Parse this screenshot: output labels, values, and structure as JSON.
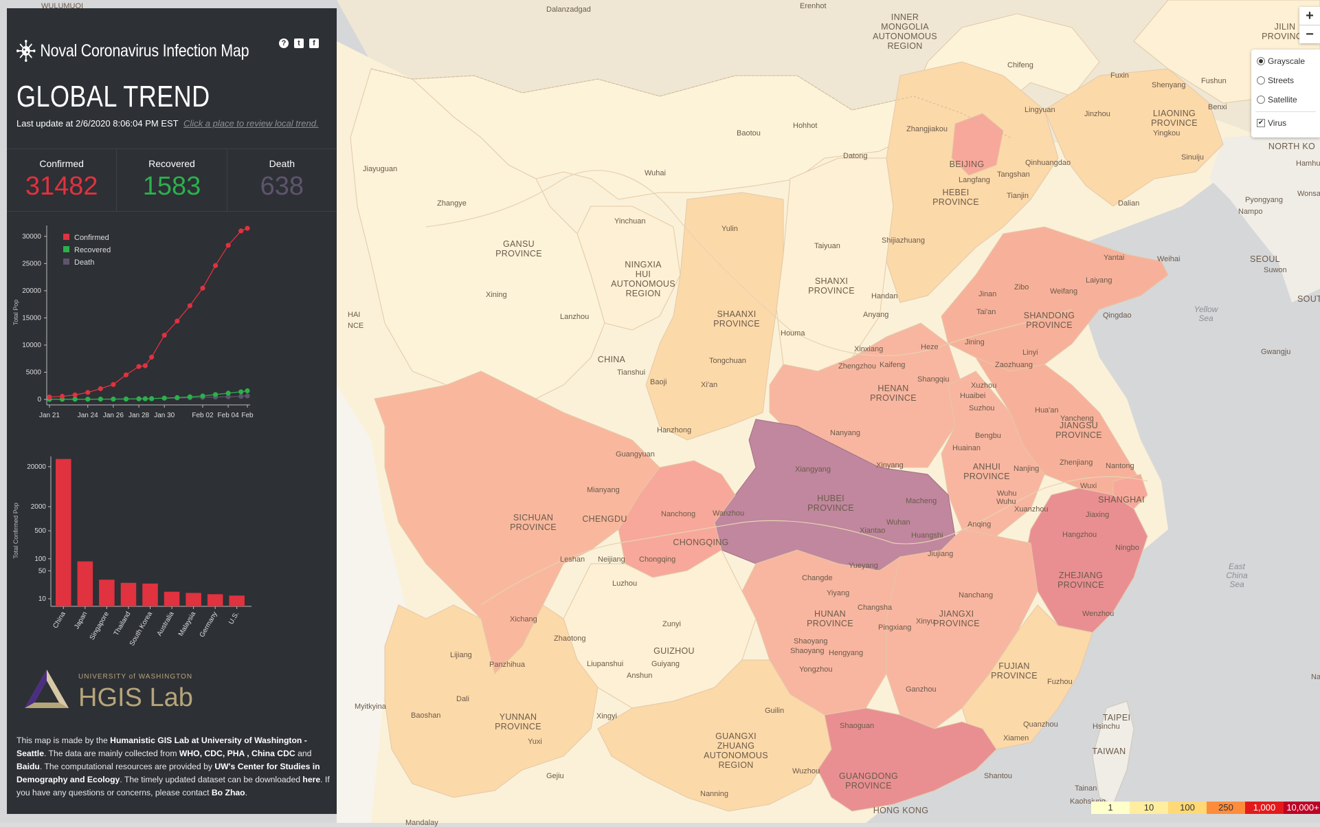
{
  "app": {
    "title": "Noval Coronavirus Infection Map",
    "heading": "GLOBAL TREND",
    "update_text": "Last update at 2/6/2020 8:06:04 PM EST",
    "update_link": "Click a place to review local trend.",
    "icons": [
      "help-icon",
      "twitter-icon",
      "facebook-icon"
    ]
  },
  "stats": {
    "confirmed_label": "Confirmed",
    "confirmed_value": "31482",
    "recovered_label": "Recovered",
    "recovered_value": "1583",
    "death_label": "Death",
    "death_value": "638"
  },
  "colors": {
    "confirmed": "#e0323f",
    "recovered": "#2bb14b",
    "death": "#5e546d",
    "panel": "#2d3035"
  },
  "chart_data": [
    {
      "type": "line",
      "ylabel": "Total Pop",
      "xlabel": "",
      "x_ticks": [
        "Jan 21",
        "Jan 24",
        "Jan 26",
        "Jan 28",
        "Jan 30",
        "Feb 02",
        "Feb 04",
        "Feb"
      ],
      "y_ticks": [
        0,
        5000,
        10000,
        15000,
        20000,
        25000,
        30000
      ],
      "ylim": [
        0,
        32000
      ],
      "legend": "top-left",
      "x_days": [
        0,
        1,
        2,
        3,
        4,
        5,
        6,
        7,
        7.5,
        8,
        9,
        10,
        11,
        12,
        13,
        14,
        15,
        15.5
      ],
      "series": [
        {
          "name": "Confirmed",
          "color": "#e0323f",
          "values": [
            440,
            571,
            830,
            1287,
            1975,
            2744,
            4515,
            6057,
            6200,
            7783,
            11821,
            14411,
            17238,
            20471,
            24630,
            28353,
            31000,
            31482
          ]
        },
        {
          "name": "Recovered",
          "color": "#2bb14b",
          "values": [
            28,
            28,
            34,
            38,
            49,
            51,
            60,
            103,
            120,
            124,
            243,
            328,
            475,
            632,
            892,
            1153,
            1400,
            1583
          ]
        },
        {
          "name": "Death",
          "color": "#5e546d",
          "values": [
            9,
            17,
            25,
            41,
            56,
            80,
            106,
            132,
            150,
            170,
            213,
            259,
            304,
            362,
            426,
            492,
            565,
            638
          ]
        }
      ]
    },
    {
      "type": "bar",
      "ylabel": "Total Confirmed Pop",
      "y_ticks": [
        10,
        50,
        100,
        500,
        2000,
        20000
      ],
      "y_scale": "log",
      "categories": [
        "China",
        "Japan",
        "Singapore",
        "Thailand",
        "South Korea",
        "Australia",
        "Malaysia",
        "Germany",
        "U.S."
      ],
      "values": [
        31161,
        86,
        30,
        25,
        24,
        15,
        14,
        13,
        12
      ]
    }
  ],
  "logo": {
    "university": "UNIVERSITY of WASHINGTON",
    "lab": "HGIS Lab"
  },
  "footer": {
    "t1": "This map is made by the ",
    "b1": "Humanistic GIS Lab at University of Washington - Seattle",
    "t2": ". The data are mainly collected from ",
    "b2": "WHO, CDC, PHA , China CDC",
    "t3": " and ",
    "b3": "Baidu",
    "t4": ". The computational resources are provided by ",
    "b4": "UW's Center for Studies in Demography and Ecology",
    "t5": ". The timely updated dataset can be downloaded ",
    "b5": "here",
    "t6": ". If you have any questions or concerns, please contact ",
    "b6": "Bo Zhao",
    "t7": "."
  },
  "map_controls": {
    "zoom_in": "+",
    "zoom_out": "−"
  },
  "layers": {
    "grayscale": "Grayscale",
    "streets": "Streets",
    "satellite": "Satellite",
    "virus": "Virus",
    "selected": "Grayscale",
    "virus_checked": true
  },
  "legend": [
    {
      "label": "1",
      "color": "#ffffcc"
    },
    {
      "label": "10",
      "color": "#ffeda0"
    },
    {
      "label": "100",
      "color": "#fed976"
    },
    {
      "label": "250",
      "color": "#fd8d3c"
    },
    {
      "label": "1,000",
      "color": "#e31a1c"
    },
    {
      "label": "10,000+",
      "color": "#bd0026"
    }
  ],
  "map_labels": {
    "provinces": [
      {
        "key": "gansu",
        "text": "GANSU\nPROVINCE"
      },
      {
        "key": "ningxia",
        "text": "NINGXIA\nHUI\nAUTONOMOUS\nREGION"
      },
      {
        "key": "shanxi",
        "text": "SHANXI\nPROVINCE"
      },
      {
        "key": "shaanxi",
        "text": "SHAANXI\nPROVINCE"
      },
      {
        "key": "hebei",
        "text": "HEBEI\nPROVINCE"
      },
      {
        "key": "shandong",
        "text": "SHANDONG\nPROVINCE"
      },
      {
        "key": "henan",
        "text": "HENAN\nPROVINCE"
      },
      {
        "key": "jiangsu",
        "text": "JIANGSU\nPROVINCE"
      },
      {
        "key": "anhui",
        "text": "ANHUI\nPROVINCE"
      },
      {
        "key": "hubei",
        "text": "HUBEI\nPROVINCE"
      },
      {
        "key": "sichuan",
        "text": "SICHUAN\nPROVINCE"
      },
      {
        "key": "zhejiang",
        "text": "ZHEJIANG\nPROVINCE"
      },
      {
        "key": "hunan",
        "text": "HUNAN\nPROVINCE"
      },
      {
        "key": "jiangxi",
        "text": "JIANGXI\nPROVINCE"
      },
      {
        "key": "fujian",
        "text": "FUJIAN\nPROVINCE"
      },
      {
        "key": "guizhou",
        "text": "GUIZHOU"
      },
      {
        "key": "yunnan",
        "text": "YUNNAN\nPROVINCE"
      },
      {
        "key": "guangxi",
        "text": "GUANGXI\nZHUANG\nAUTONOMOUS\nREGION"
      },
      {
        "key": "guangdong",
        "text": "GUANGDONG\nPROVINCE"
      },
      {
        "key": "liaoning",
        "text": "LIAONING\nPROVINCE"
      },
      {
        "key": "innermongolia",
        "text": "INNER\nMONGOLIA\nAUTONOMOUS\nREGION"
      },
      {
        "key": "jilin",
        "text": "JILIN\nPROVINCE"
      },
      {
        "key": "taiwan",
        "text": "TAIWAN"
      },
      {
        "key": "china",
        "text": "CHINA"
      },
      {
        "key": "chongqing",
        "text": "CHONGQING"
      },
      {
        "key": "shanghai",
        "text": "SHANGHAI"
      },
      {
        "key": "beijing",
        "text": "BEIJING"
      },
      {
        "key": "hongkong",
        "text": "HONG KONG"
      },
      {
        "key": "chengdu",
        "text": "CHENGDU"
      },
      {
        "key": "northkorea",
        "text": "NORTH KO"
      },
      {
        "key": "south",
        "text": "SOUT"
      },
      {
        "key": "seoul",
        "text": "SEOUL"
      },
      {
        "key": "taipei",
        "text": "TAIPEI"
      }
    ],
    "seas": [
      {
        "key": "yellowsea",
        "text": "Yellow\nSea"
      },
      {
        "key": "eastchinasea",
        "text": "East\nChina\nSea"
      }
    ],
    "cities": [
      {
        "key": "dalanzadgad",
        "text": "Dalanzadgad"
      },
      {
        "key": "erenhot",
        "text": "Erenhot"
      },
      {
        "key": "jiayuguan",
        "text": "Jiayuguan"
      },
      {
        "key": "zhangye",
        "text": "Zhangye"
      },
      {
        "key": "wuhai",
        "text": "Wuhai"
      },
      {
        "key": "baotou",
        "text": "Baotou"
      },
      {
        "key": "hohhot",
        "text": "Hohhot"
      },
      {
        "key": "zhangjiakou",
        "text": "Zhangjiakou"
      },
      {
        "key": "datong",
        "text": "Datong"
      },
      {
        "key": "chifeng",
        "text": "Chifeng"
      },
      {
        "key": "fuxin",
        "text": "Fuxin"
      },
      {
        "key": "shenyang",
        "text": "Shenyang"
      },
      {
        "key": "fushun",
        "text": "Fushun"
      },
      {
        "key": "benxi",
        "text": "Benxi"
      },
      {
        "key": "jinzhou",
        "text": "Jinzhou"
      },
      {
        "key": "lingyuan",
        "text": "Lingyuan"
      },
      {
        "key": "qinhuangdao",
        "text": "Qinhuangdao"
      },
      {
        "key": "tangshan",
        "text": "Tangshan"
      },
      {
        "key": "tianjin",
        "text": "Tianjin"
      },
      {
        "key": "langfang",
        "text": "Langfang"
      },
      {
        "key": "yingkou",
        "text": "Yingkou"
      },
      {
        "key": "dalian",
        "text": "Dalian"
      },
      {
        "key": "sinuiju",
        "text": "Sinuiju"
      },
      {
        "key": "hamhung",
        "text": "Hamhung"
      },
      {
        "key": "pyongyang",
        "text": "Pyongyang"
      },
      {
        "key": "nampo",
        "text": "Nampo"
      },
      {
        "key": "wonsan",
        "text": "Wonsan"
      },
      {
        "key": "suwon",
        "text": "Suwon"
      },
      {
        "key": "gwangju",
        "text": "Gwangju"
      },
      {
        "key": "yinchuan",
        "text": "Yinchuan"
      },
      {
        "key": "yulin",
        "text": "Yulin"
      },
      {
        "key": "taiyuan",
        "text": "Taiyuan"
      },
      {
        "key": "shijiazhuang",
        "text": "Shijiazhuang"
      },
      {
        "key": "handan",
        "text": "Handan"
      },
      {
        "key": "anyang",
        "text": "Anyang"
      },
      {
        "key": "xining",
        "text": "Xining"
      },
      {
        "key": "lanzhou",
        "text": "Lanzhou"
      },
      {
        "key": "tianshui",
        "text": "Tianshui"
      },
      {
        "key": "baoji",
        "text": "Baoji"
      },
      {
        "key": "xian",
        "text": "Xi'an"
      },
      {
        "key": "tongchuan",
        "text": "Tongchuan"
      },
      {
        "key": "houma",
        "text": "Houma"
      },
      {
        "key": "yantai",
        "text": "Yantai"
      },
      {
        "key": "weihai",
        "text": "Weihai"
      },
      {
        "key": "laiyang",
        "text": "Laiyang"
      },
      {
        "key": "qingdao",
        "text": "Qingdao"
      },
      {
        "key": "jinan",
        "text": "Jinan"
      },
      {
        "key": "zibo",
        "text": "Zibo"
      },
      {
        "key": "weifang",
        "text": "Weifang"
      },
      {
        "key": "taian",
        "text": "Tai'an"
      },
      {
        "key": "jining",
        "text": "Jining"
      },
      {
        "key": "linyi",
        "text": "Linyi"
      },
      {
        "key": "heze",
        "text": "Heze"
      },
      {
        "key": "xinxiang",
        "text": "Xinxiang"
      },
      {
        "key": "zhengzhou",
        "text": "Zhengzhou"
      },
      {
        "key": "kaifeng",
        "text": "Kaifeng"
      },
      {
        "key": "shangqiu",
        "text": "Shangqiu"
      },
      {
        "key": "zaozhuang",
        "text": "Zaozhuang"
      },
      {
        "key": "xuzhou",
        "text": "Xuzhou"
      },
      {
        "key": "huaibei",
        "text": "Huaibei"
      },
      {
        "key": "suzhou_a",
        "text": "Suzhou"
      },
      {
        "key": "huaian",
        "text": "Hua'an"
      },
      {
        "key": "yancheng",
        "text": "Yancheng"
      },
      {
        "key": "bengbu",
        "text": "Bengbu"
      },
      {
        "key": "huainan",
        "text": "Huainan"
      },
      {
        "key": "nanjing",
        "text": "Nanjing"
      },
      {
        "key": "zhenjiang",
        "text": "Zhenjiang"
      },
      {
        "key": "nantong",
        "text": "Nantong"
      },
      {
        "key": "wuxi",
        "text": "Wuxi"
      },
      {
        "key": "wuhu",
        "text": "Wuhu"
      },
      {
        "key": "wuhu2",
        "text": "Wuhu"
      },
      {
        "key": "xuanzhou",
        "text": "Xuanzhou"
      },
      {
        "key": "anqing",
        "text": "Anqing"
      },
      {
        "key": "jiaxing",
        "text": "Jiaxing"
      },
      {
        "key": "hangzhou",
        "text": "Hangzhou"
      },
      {
        "key": "ningbo",
        "text": "Ningbo"
      },
      {
        "key": "wenzhou",
        "text": "Wenzhou"
      },
      {
        "key": "hanzhong",
        "text": "Hanzhong"
      },
      {
        "key": "nanyang",
        "text": "Nanyang"
      },
      {
        "key": "xiangyang",
        "text": "Xiangyang"
      },
      {
        "key": "xinyang",
        "text": "Xinyang"
      },
      {
        "key": "macheng",
        "text": "Macheng"
      },
      {
        "key": "wuhan",
        "text": "Wuhan"
      },
      {
        "key": "xiantao",
        "text": "Xiantao"
      },
      {
        "key": "huangshi",
        "text": "Huangshi"
      },
      {
        "key": "jiujiang",
        "text": "Jiujiang"
      },
      {
        "key": "guangyuan",
        "text": "Guangyuan"
      },
      {
        "key": "mianyang",
        "text": "Mianyang"
      },
      {
        "key": "nanchong",
        "text": "Nanchong"
      },
      {
        "key": "wanzhou",
        "text": "Wanzhou"
      },
      {
        "key": "leshan",
        "text": "Leshan"
      },
      {
        "key": "neijiang",
        "text": "Neijiang"
      },
      {
        "key": "chongqing_c",
        "text": "Chongqing"
      },
      {
        "key": "luzhou",
        "text": "Luzhou"
      },
      {
        "key": "xichang",
        "text": "Xichang"
      },
      {
        "key": "yueyang",
        "text": "Yueyang"
      },
      {
        "key": "changde",
        "text": "Changde"
      },
      {
        "key": "yiyang",
        "text": "Yiyang"
      },
      {
        "key": "changsha",
        "text": "Changsha"
      },
      {
        "key": "nanchang",
        "text": "Nanchang"
      },
      {
        "key": "xinyu",
        "text": "Xinyu"
      },
      {
        "key": "pingxiang",
        "text": "Pingxiang"
      },
      {
        "key": "shaoyang",
        "text": "Shaoyang"
      },
      {
        "key": "shaoyang2",
        "text": "Shaoyang"
      },
      {
        "key": "hengyang",
        "text": "Hengyang"
      },
      {
        "key": "yongzhou",
        "text": "Yongzhou"
      },
      {
        "key": "ganzhou",
        "text": "Ganzhou"
      },
      {
        "key": "zunyi",
        "text": "Zunyi"
      },
      {
        "key": "zhaotong",
        "text": "Zhaotong"
      },
      {
        "key": "lupanshui",
        "text": "Liupanshui"
      },
      {
        "key": "guiyang",
        "text": "Guiyang"
      },
      {
        "key": "anshun",
        "text": "Anshun"
      },
      {
        "key": "lijiang",
        "text": "Lijiang"
      },
      {
        "key": "panzhihua",
        "text": "Panzhihua"
      },
      {
        "key": "dali",
        "text": "Dali"
      },
      {
        "key": "baoshan",
        "text": "Baoshan"
      },
      {
        "key": "yuxi",
        "text": "Yuxi"
      },
      {
        "key": "xingyi",
        "text": "Xingyi"
      },
      {
        "key": "guilin",
        "text": "Guilin"
      },
      {
        "key": "wuzhou",
        "text": "Wuzhou"
      },
      {
        "key": "nanning",
        "text": "Nanning"
      },
      {
        "key": "gejiu",
        "text": "Gejiu"
      },
      {
        "key": "shaoguan",
        "text": "Shaoguan"
      },
      {
        "key": "shantou",
        "text": "Shantou"
      },
      {
        "key": "fuzhou",
        "text": "Fuzhou"
      },
      {
        "key": "quanzhou",
        "text": "Quanzhou"
      },
      {
        "key": "xiamen",
        "text": "Xiamen"
      },
      {
        "key": "hsinchu",
        "text": "Hsinchu"
      },
      {
        "key": "tainan",
        "text": "Tainan"
      },
      {
        "key": "kaohsiung",
        "text": "Kaohsiung"
      },
      {
        "key": "myitkyina",
        "text": "Myitkyina"
      },
      {
        "key": "mandalay",
        "text": "Mandalay"
      },
      {
        "key": "naha",
        "text": "Naha"
      },
      {
        "key": "wulumuqi",
        "text": "WULUMUQI"
      },
      {
        "key": "hai",
        "text": "HAI"
      },
      {
        "key": "nce",
        "text": "NCE"
      }
    ]
  }
}
